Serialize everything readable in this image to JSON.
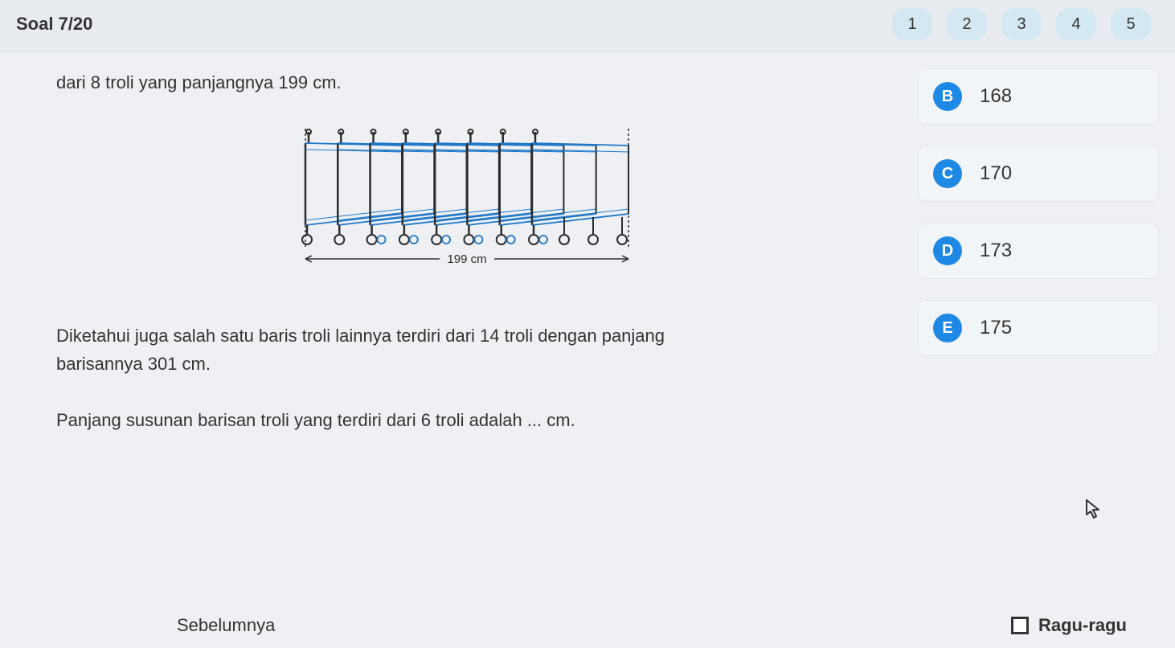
{
  "header": {
    "counter": "Soal 7/20",
    "pages": [
      "1",
      "2",
      "3",
      "4",
      "5"
    ]
  },
  "question": {
    "line1": "dari 8 troli yang panjangnya 199 cm.",
    "paragraph1": "Diketahui juga salah satu baris troli lainnya terdiri dari 14 troli dengan panjang barisannya 301 cm.",
    "paragraph2": "Panjang susunan barisan troli yang terdiri dari 6 troli adalah ... cm."
  },
  "diagram": {
    "width_label": "199 cm",
    "stroke_dark": "#2c2c2c",
    "stroke_blue": "#1e78c8",
    "trolley_count": 8
  },
  "answers": [
    {
      "letter": "B",
      "text": "168"
    },
    {
      "letter": "C",
      "text": "170"
    },
    {
      "letter": "D",
      "text": "173"
    },
    {
      "letter": "E",
      "text": "175"
    }
  ],
  "footer": {
    "prev": "Sebelumnya",
    "ragu": "Ragu-ragu"
  },
  "colors": {
    "pill_bg": "#d4e8f2",
    "badge_bg": "#1e88e5",
    "option_bg": "#f2f5f8",
    "body_bg": "#eef0f3"
  }
}
